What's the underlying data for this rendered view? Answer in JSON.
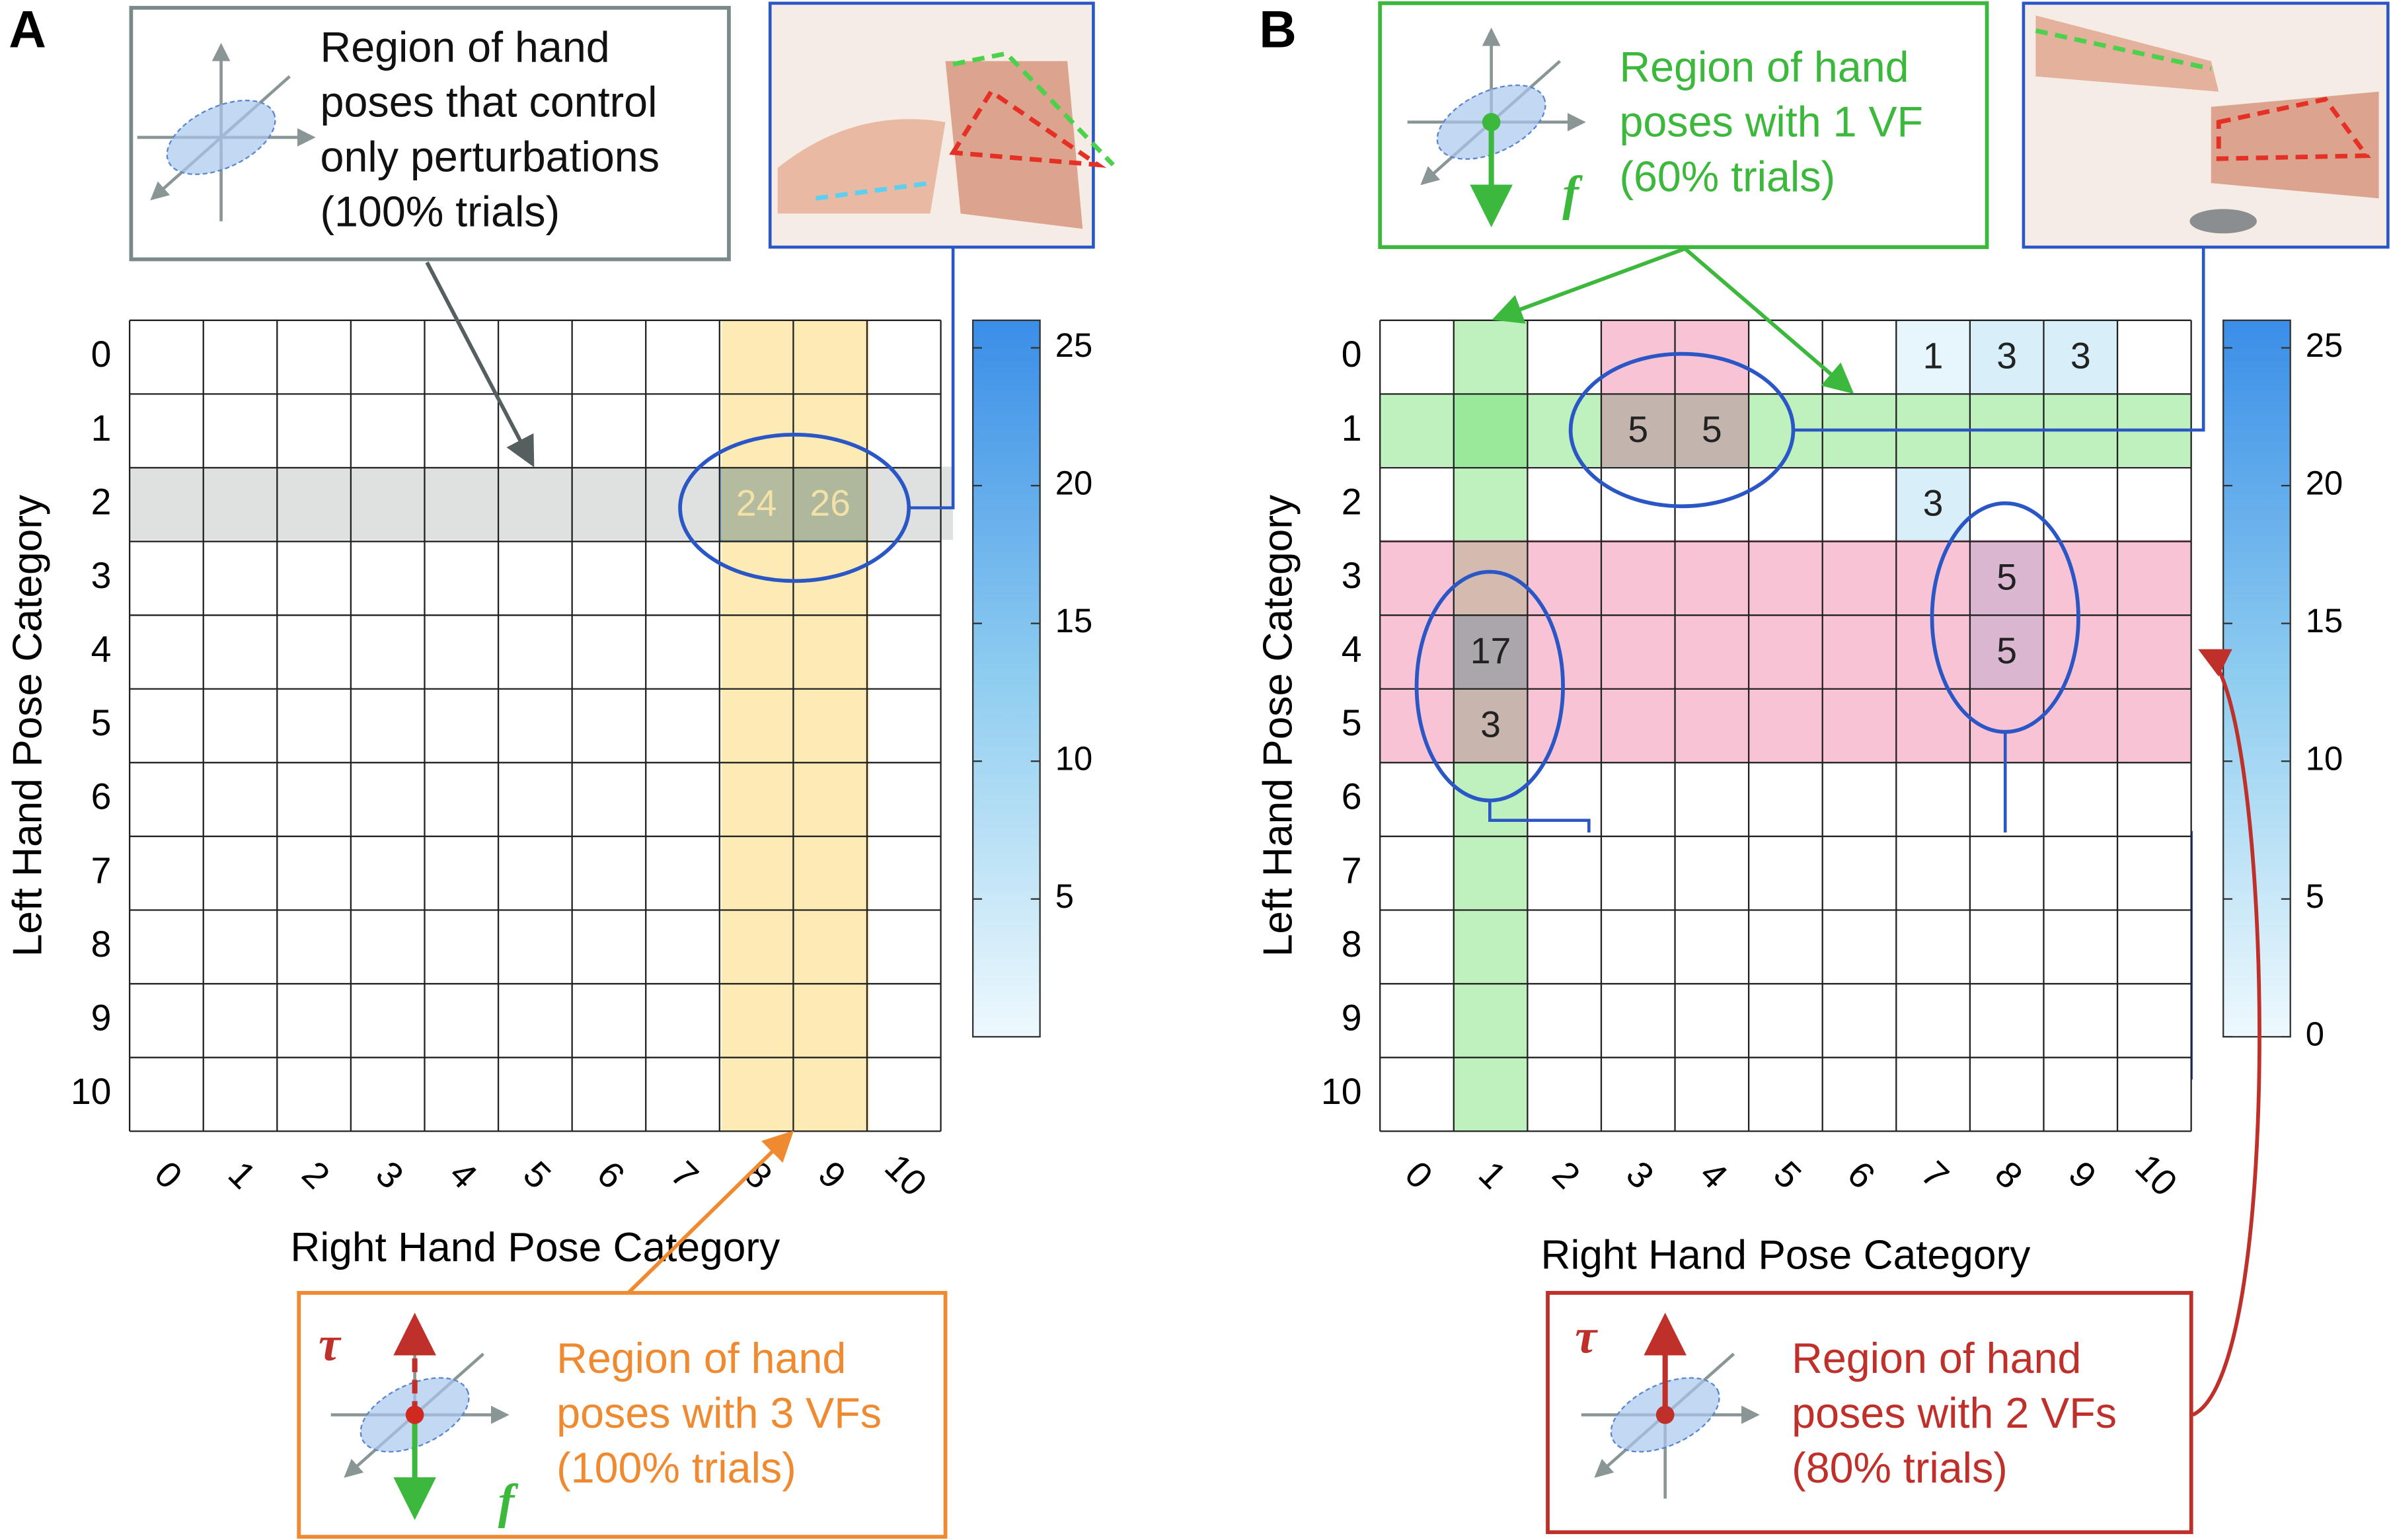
{
  "chart_data": [
    {
      "type": "heatmap",
      "panel_label": "A",
      "xlabel": "Right Hand Pose Category",
      "ylabel": "Left Hand Pose Category",
      "xticks": [
        0,
        1,
        2,
        3,
        4,
        5,
        6,
        7,
        8,
        9,
        10
      ],
      "yticks": [
        0,
        1,
        2,
        3,
        4,
        5,
        6,
        7,
        8,
        9,
        10
      ],
      "clim": [
        0,
        26
      ],
      "cticks": [
        5,
        10,
        15,
        20,
        25
      ],
      "cells": [
        {
          "row": 2,
          "col": 8,
          "value": 24
        },
        {
          "row": 2,
          "col": 9,
          "value": 26
        }
      ],
      "annotations": [
        {
          "lines": [
            "Region of hand",
            "poses that control",
            "only perturbations",
            "(100% trials)"
          ],
          "symbols": []
        },
        {
          "lines": [
            "Region of hand",
            "poses with 3 VFs",
            "(100% trials)"
          ],
          "symbols": [
            "τ",
            "f"
          ]
        }
      ]
    },
    {
      "type": "heatmap",
      "panel_label": "B",
      "xlabel": "Right Hand Pose Category",
      "ylabel": "Left Hand Pose Category",
      "xticks": [
        0,
        1,
        2,
        3,
        4,
        5,
        6,
        7,
        8,
        9,
        10
      ],
      "yticks": [
        0,
        1,
        2,
        3,
        4,
        5,
        6,
        7,
        8,
        9,
        10
      ],
      "clim": [
        0,
        26
      ],
      "cticks": [
        0,
        5,
        10,
        15,
        20,
        25
      ],
      "cells": [
        {
          "row": 0,
          "col": 7,
          "value": 1
        },
        {
          "row": 0,
          "col": 8,
          "value": 3
        },
        {
          "row": 0,
          "col": 9,
          "value": 3
        },
        {
          "row": 1,
          "col": 3,
          "value": 5
        },
        {
          "row": 1,
          "col": 4,
          "value": 5
        },
        {
          "row": 2,
          "col": 7,
          "value": 3
        },
        {
          "row": 3,
          "col": 8,
          "value": 5
        },
        {
          "row": 4,
          "col": 8,
          "value": 5
        },
        {
          "row": 4,
          "col": 1,
          "value": 17
        },
        {
          "row": 5,
          "col": 1,
          "value": 3
        }
      ],
      "annotations": [
        {
          "lines": [
            "Region of hand",
            "poses with 1 VF",
            "(60% trials)"
          ],
          "symbols": [
            "f"
          ]
        },
        {
          "lines": [
            "Region of hand",
            "poses with 2 VFs",
            "(80% trials)"
          ],
          "symbols": [
            "τ"
          ]
        }
      ]
    }
  ]
}
